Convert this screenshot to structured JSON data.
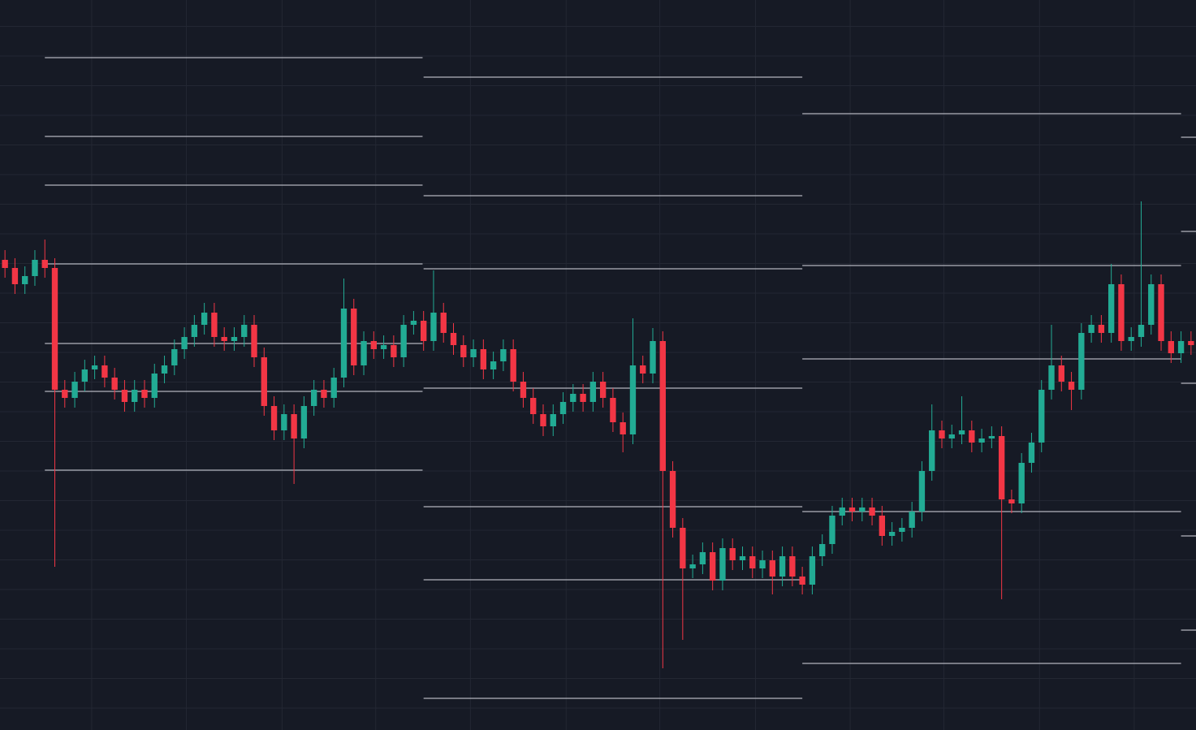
{
  "chart_data": {
    "type": "candlestick",
    "up_color": "#22ab94",
    "down_color": "#f23645",
    "level_color": "#b2b5be",
    "grid": true,
    "grid_color": "#232733",
    "xlim": [
      0,
      120
    ],
    "ylim": [
      0,
      899
    ],
    "xticks": [
      9.2,
      18.7,
      28.3,
      37.7,
      47.2,
      56.8,
      66.2,
      75.8,
      85.3,
      94.7,
      104.3,
      113.8
    ],
    "yticks": [
      27,
      63.5,
      100,
      136.5,
      173,
      209.5,
      246,
      282.5,
      319,
      355.5,
      392,
      428.5,
      465,
      501.5,
      538,
      574.5,
      611,
      647.5,
      684,
      720.5,
      757,
      793.5,
      830,
      866.5
    ],
    "candles": [
      [
        579,
        591,
        557,
        569
      ],
      [
        569,
        581,
        537,
        549
      ],
      [
        549,
        571,
        537,
        559
      ],
      [
        559,
        591,
        547,
        579
      ],
      [
        579,
        604,
        557,
        569
      ],
      [
        569,
        581,
        201,
        419
      ],
      [
        419,
        431,
        397,
        409
      ],
      [
        409,
        441,
        397,
        429
      ],
      [
        429,
        456,
        417,
        444
      ],
      [
        444,
        461,
        432,
        449
      ],
      [
        449,
        461,
        422,
        434
      ],
      [
        434,
        446,
        407,
        419
      ],
      [
        419,
        431,
        392,
        404
      ],
      [
        404,
        431,
        392,
        419
      ],
      [
        419,
        431,
        397,
        409
      ],
      [
        409,
        451,
        397,
        439
      ],
      [
        439,
        461,
        427,
        449
      ],
      [
        449,
        481,
        437,
        469
      ],
      [
        469,
        496,
        457,
        484
      ],
      [
        484,
        511,
        472,
        499
      ],
      [
        499,
        526,
        487,
        514
      ],
      [
        514,
        526,
        472,
        484
      ],
      [
        484,
        496,
        467,
        479
      ],
      [
        479,
        496,
        467,
        484
      ],
      [
        484,
        511,
        472,
        499
      ],
      [
        499,
        511,
        447,
        459
      ],
      [
        459,
        471,
        387,
        399
      ],
      [
        399,
        411,
        357,
        369
      ],
      [
        369,
        401,
        357,
        389
      ],
      [
        389,
        401,
        303,
        359
      ],
      [
        359,
        411,
        347,
        399
      ],
      [
        399,
        431,
        387,
        419
      ],
      [
        419,
        431,
        397,
        409
      ],
      [
        409,
        446,
        397,
        434
      ],
      [
        434,
        556,
        422,
        519
      ],
      [
        519,
        531,
        437,
        449
      ],
      [
        449,
        491,
        437,
        479
      ],
      [
        479,
        491,
        457,
        469
      ],
      [
        469,
        486,
        457,
        474
      ],
      [
        474,
        486,
        447,
        459
      ],
      [
        459,
        511,
        447,
        499
      ],
      [
        499,
        516,
        487,
        504
      ],
      [
        504,
        516,
        467,
        479
      ],
      [
        479,
        566,
        467,
        514
      ],
      [
        514,
        526,
        477,
        489
      ],
      [
        489,
        501,
        462,
        474
      ],
      [
        474,
        486,
        447,
        459
      ],
      [
        459,
        481,
        447,
        469
      ],
      [
        469,
        481,
        432,
        444
      ],
      [
        444,
        466,
        432,
        454
      ],
      [
        454,
        481,
        442,
        469
      ],
      [
        469,
        481,
        417,
        429
      ],
      [
        429,
        441,
        397,
        409
      ],
      [
        409,
        421,
        377,
        389
      ],
      [
        389,
        401,
        362,
        374
      ],
      [
        374,
        401,
        362,
        389
      ],
      [
        389,
        416,
        377,
        404
      ],
      [
        404,
        426,
        392,
        414
      ],
      [
        414,
        426,
        392,
        404
      ],
      [
        404,
        441,
        392,
        429
      ],
      [
        429,
        441,
        397,
        409
      ],
      [
        409,
        421,
        367,
        379
      ],
      [
        379,
        391,
        342,
        364
      ],
      [
        364,
        507,
        352,
        449
      ],
      [
        449,
        461,
        427,
        439
      ],
      [
        439,
        495,
        427,
        479
      ],
      [
        479,
        491,
        76,
        319
      ],
      [
        319,
        331,
        237,
        249
      ],
      [
        249,
        261,
        111,
        199
      ],
      [
        199,
        216,
        187,
        204
      ],
      [
        204,
        231,
        192,
        219
      ],
      [
        219,
        231,
        172,
        184
      ],
      [
        184,
        236,
        172,
        224
      ],
      [
        224,
        236,
        197,
        209
      ],
      [
        209,
        226,
        197,
        214
      ],
      [
        214,
        226,
        187,
        199
      ],
      [
        199,
        221,
        187,
        209
      ],
      [
        209,
        221,
        167,
        189
      ],
      [
        189,
        226,
        177,
        214
      ],
      [
        214,
        226,
        177,
        189
      ],
      [
        189,
        201,
        167,
        179
      ],
      [
        179,
        226,
        167,
        214
      ],
      [
        214,
        241,
        202,
        229
      ],
      [
        229,
        276,
        217,
        264
      ],
      [
        264,
        286,
        252,
        274
      ],
      [
        274,
        286,
        257,
        269
      ],
      [
        269,
        286,
        257,
        274
      ],
      [
        274,
        286,
        252,
        264
      ],
      [
        264,
        276,
        227,
        239
      ],
      [
        239,
        256,
        227,
        244
      ],
      [
        244,
        261,
        232,
        249
      ],
      [
        249,
        281,
        237,
        269
      ],
      [
        269,
        331,
        257,
        319
      ],
      [
        319,
        401,
        307,
        369
      ],
      [
        369,
        381,
        347,
        359
      ],
      [
        359,
        376,
        347,
        364
      ],
      [
        364,
        411,
        352,
        369
      ],
      [
        369,
        381,
        342,
        354
      ],
      [
        354,
        371,
        342,
        359
      ],
      [
        359,
        374,
        347,
        362
      ],
      [
        362,
        374,
        161,
        284
      ],
      [
        284,
        296,
        267,
        279
      ],
      [
        279,
        341,
        267,
        329
      ],
      [
        329,
        366,
        317,
        354
      ],
      [
        354,
        431,
        342,
        419
      ],
      [
        419,
        499,
        407,
        449
      ],
      [
        449,
        461,
        417,
        429
      ],
      [
        429,
        441,
        394,
        419
      ],
      [
        419,
        501,
        407,
        489
      ],
      [
        489,
        511,
        477,
        499
      ],
      [
        499,
        511,
        477,
        489
      ],
      [
        489,
        574,
        477,
        549
      ],
      [
        549,
        561,
        467,
        479
      ],
      [
        479,
        496,
        467,
        484
      ],
      [
        484,
        651,
        472,
        499
      ],
      [
        499,
        561,
        487,
        549
      ],
      [
        549,
        561,
        467,
        479
      ],
      [
        479,
        491,
        452,
        464
      ],
      [
        464,
        491,
        452,
        479
      ],
      [
        479,
        491,
        462,
        474
      ]
    ],
    "levels": [
      {
        "start": 4.5,
        "end": 42.4,
        "values": [
          828,
          731,
          671,
          574,
          476,
          417,
          320
        ]
      },
      {
        "start": 42.5,
        "end": 80.5,
        "values": [
          804,
          658,
          568,
          421,
          275,
          185,
          39
        ]
      },
      {
        "start": 80.5,
        "end": 118.5,
        "values": [
          759,
          572,
          457,
          269,
          82
        ]
      },
      {
        "start": 118.5,
        "end": 120,
        "values": [
          730,
          614,
          427,
          239,
          123
        ]
      }
    ]
  }
}
